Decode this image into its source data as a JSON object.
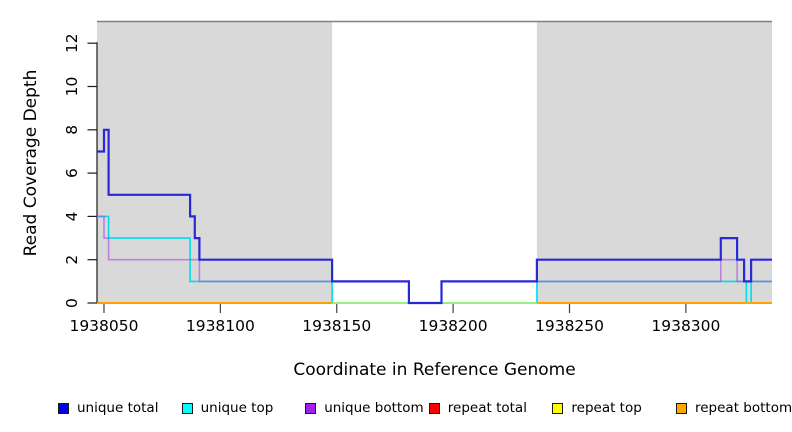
{
  "chart_data": {
    "type": "line",
    "subtype": "step-coverage",
    "title": "",
    "xlabel": "Coordinate in Reference Genome",
    "ylabel": "Read Coverage Depth",
    "xlim": [
      1938047,
      1938337
    ],
    "ylim": [
      0,
      13
    ],
    "x_ticks": [
      1938050,
      1938100,
      1938150,
      1938200,
      1938250,
      1938300
    ],
    "y_ticks": [
      0,
      2,
      4,
      6,
      8,
      10,
      12
    ],
    "grid": false,
    "legend_position": "bottom",
    "plot_background": "#ffffff",
    "shaded_region_color": "#d9d9d9",
    "boundary_line": {
      "y": 13,
      "color": "#808080"
    },
    "shaded_regions": [
      {
        "x0": 1938047,
        "x1": 1938148
      },
      {
        "x0": 1938236,
        "x1": 1938337
      }
    ],
    "series": [
      {
        "name": "unique total",
        "color": "#0000ee",
        "line_color": "#2828d8",
        "xend": 1938337,
        "x": [
          1938047,
          1938050,
          1938052,
          1938087,
          1938089,
          1938091,
          1938148,
          1938181,
          1938195,
          1938236,
          1938315,
          1938322,
          1938325,
          1938328
        ],
        "y": [
          7,
          8,
          5,
          4,
          3,
          2,
          1,
          0,
          1,
          2,
          3,
          2,
          1,
          2
        ]
      },
      {
        "name": "unique top",
        "color": "#00ffff",
        "line_color": "#00dce8",
        "xend": 1938337,
        "x": [
          1938047,
          1938052,
          1938087,
          1938148,
          1938236,
          1938326,
          1938328
        ],
        "y": [
          4,
          3,
          1,
          0,
          1,
          0,
          1
        ]
      },
      {
        "name": "unique bottom",
        "color": "#a020f0",
        "line_color": "#a855e0",
        "xend": 1938337,
        "x": [
          1938047,
          1938050,
          1938052,
          1938091,
          1938181,
          1938195,
          1938315,
          1938322
        ],
        "y": [
          4,
          3,
          2,
          1,
          0,
          1,
          2,
          1
        ]
      },
      {
        "name": "repeat total",
        "color": "#ff0000",
        "line_color": "#ff0000",
        "flat_segments": [
          {
            "x0": 1938047,
            "x1": 1938148,
            "y": 0
          },
          {
            "x0": 1938236,
            "x1": 1938337,
            "y": 0
          }
        ]
      },
      {
        "name": "repeat top",
        "color": "#ffff00",
        "line_color": "#ffff00",
        "flat_segments": [
          {
            "x0": 1938047,
            "x1": 1938337,
            "y": 0
          }
        ]
      },
      {
        "name": "repeat bottom",
        "color": "#ffa500",
        "line_color": "#ffa500",
        "flat_segments": [
          {
            "x0": 1938047,
            "x1": 1938148,
            "y": 0
          },
          {
            "x0": 1938236,
            "x1": 1938337,
            "y": 0
          }
        ]
      }
    ]
  }
}
